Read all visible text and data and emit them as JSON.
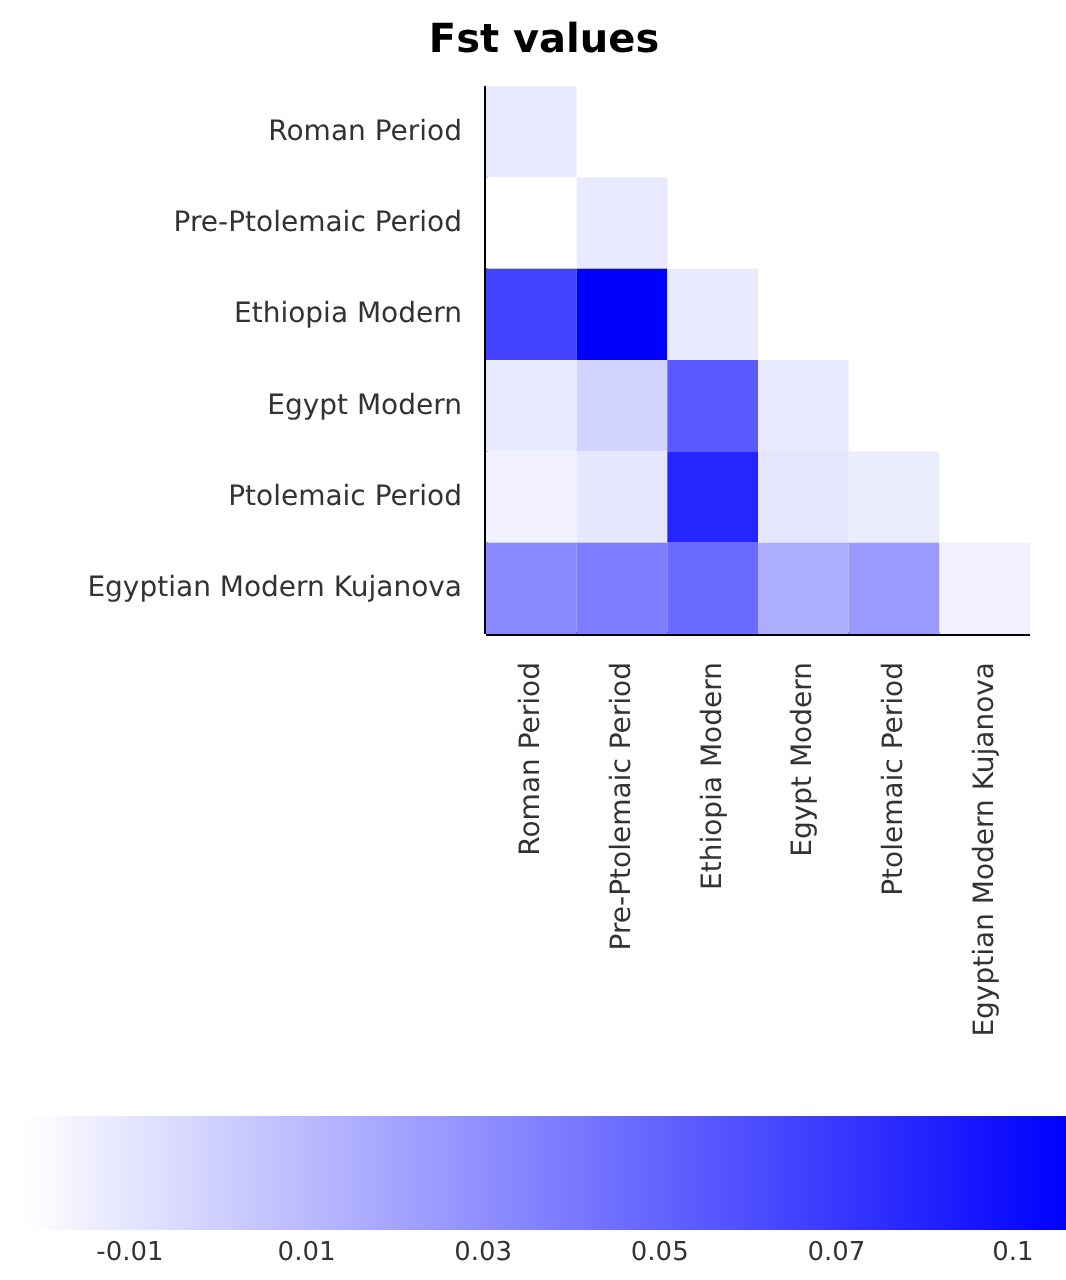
{
  "chart_data": {
    "type": "heatmap",
    "title": "Fst values",
    "categories": [
      "Roman Period",
      "Pre-Ptolemaic Period",
      "Ethiopia Modern",
      "Egypt Modern",
      "Ptolemaic Period",
      "Egyptian Modern Kujanova"
    ],
    "y_categories": [
      "Roman Period",
      "Pre-Ptolemaic Period",
      "Ethiopia Modern",
      "Egypt Modern",
      "Ptolemaic Period",
      "Egyptian Modern Kujanova"
    ],
    "cells": [
      [
        -0.012,
        null,
        null,
        null,
        null,
        null
      ],
      [
        -0.022,
        -0.012,
        null,
        null,
        null,
        null
      ],
      [
        0.066,
        0.096,
        -0.012,
        null,
        null,
        null
      ],
      [
        -0.012,
        -0.001,
        0.055,
        -0.012,
        null,
        null
      ],
      [
        -0.015,
        -0.011,
        0.079,
        -0.01,
        -0.013,
        null
      ],
      [
        0.033,
        0.038,
        0.047,
        0.016,
        0.025,
        -0.015
      ]
    ],
    "clim": [
      -0.022,
      0.096
    ],
    "cticks": [
      -0.01,
      0.01,
      0.03,
      0.05,
      0.07,
      {
        "value": 0.09,
        "label": "0.1"
      }
    ]
  }
}
